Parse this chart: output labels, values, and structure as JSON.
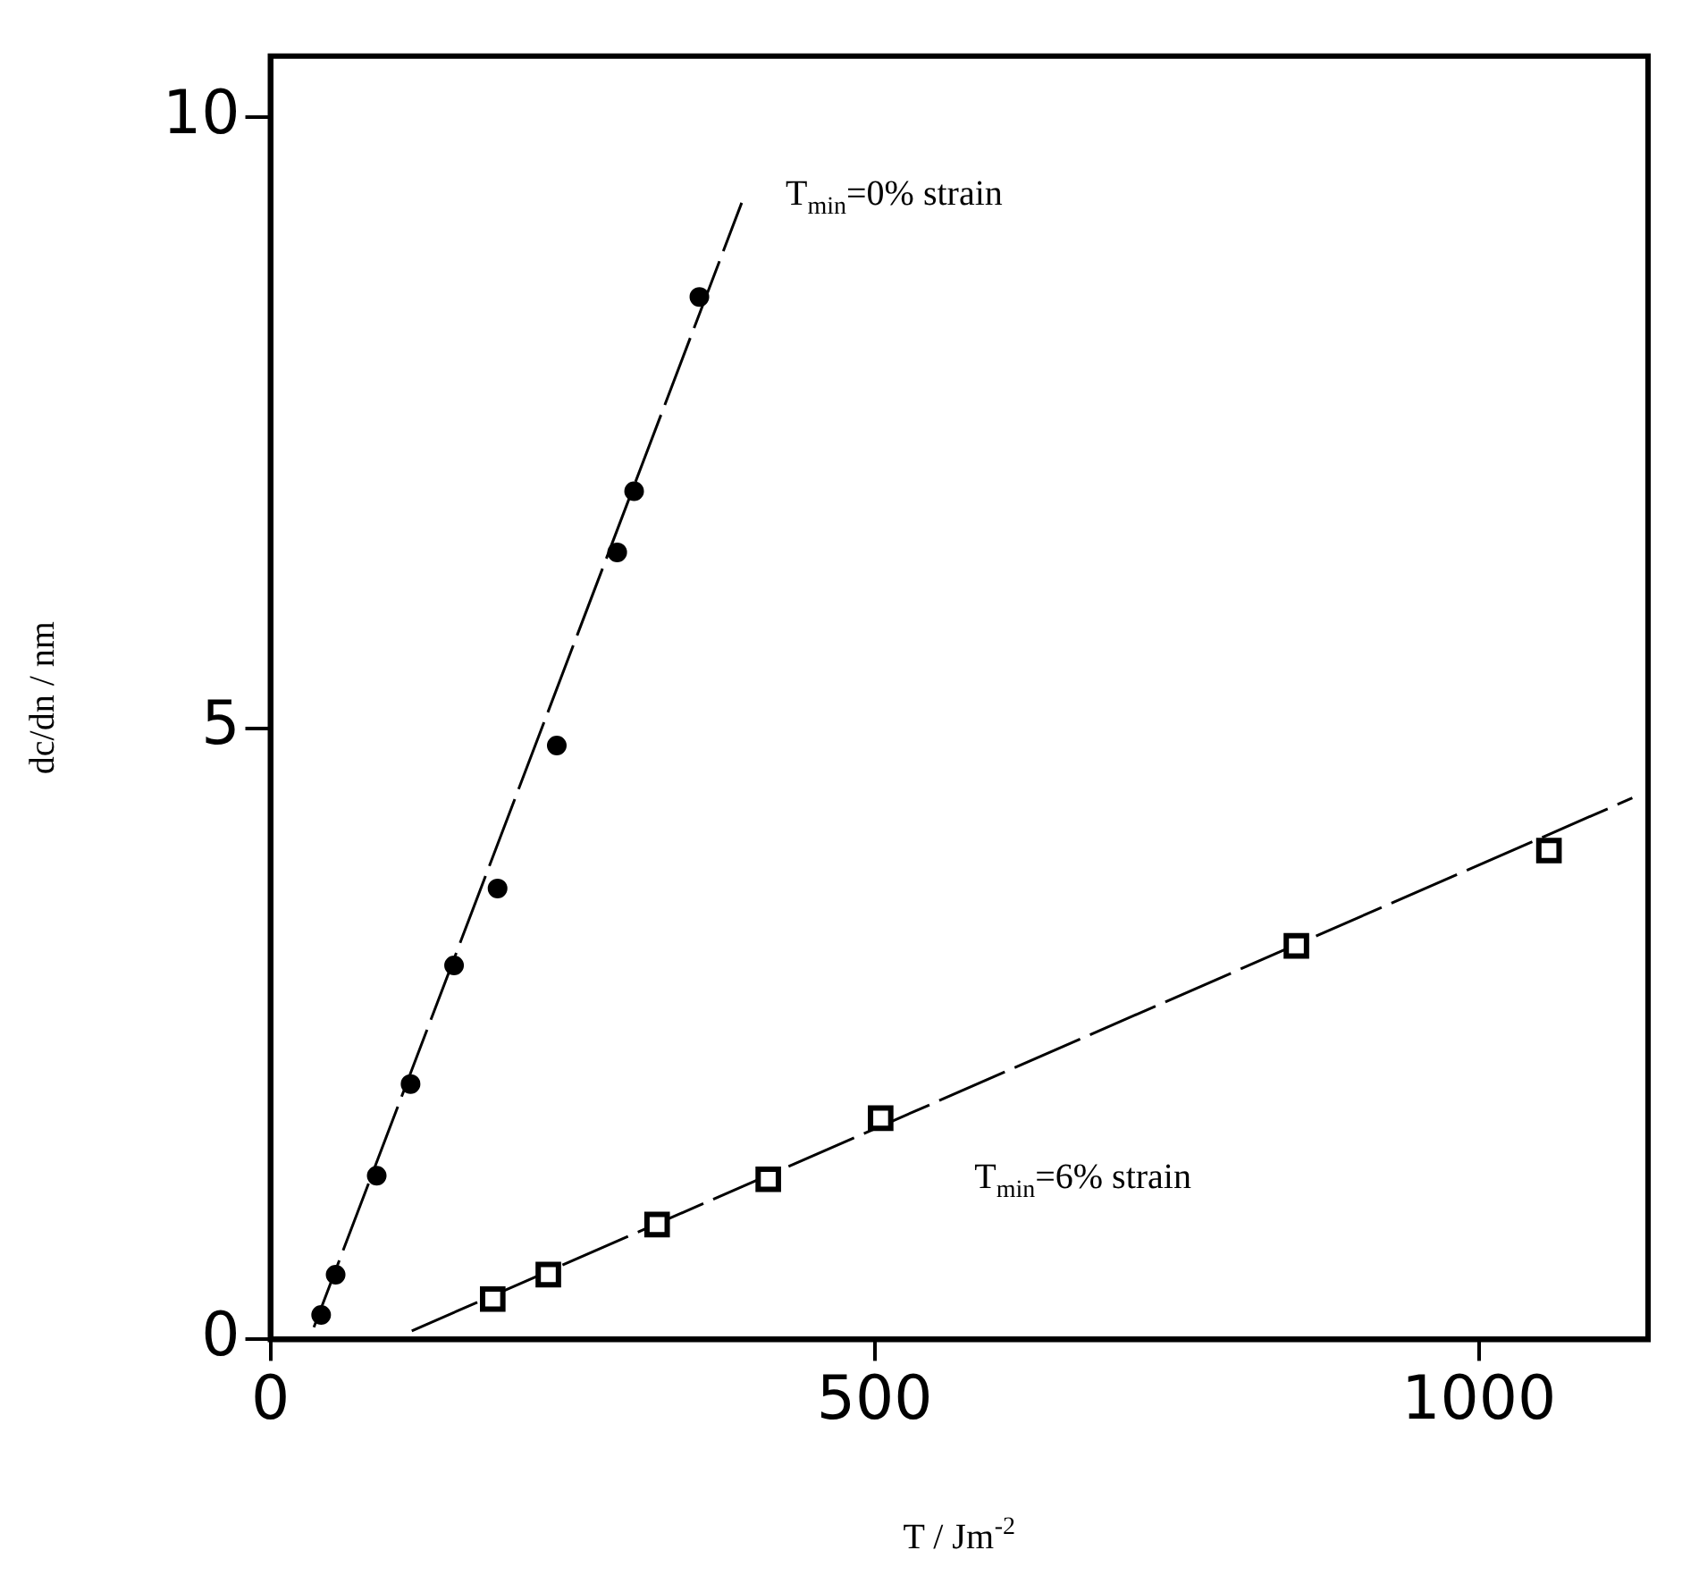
{
  "chart_data": {
    "type": "scatter",
    "xlabel": "T / Jm$^{-2}$",
    "ylabel": "dc/dn / nm",
    "xlim": [
      0,
      1140
    ],
    "ylim": [
      0,
      10.5
    ],
    "xticks": [
      0,
      500,
      1000
    ],
    "yticks": [
      0,
      5,
      10
    ],
    "grid": false,
    "legend": false,
    "series": [
      {
        "marker": "circle",
        "color": "#000000",
        "x": [
          42,
          54,
          88,
          116,
          152,
          188,
          237,
          287,
          301,
          355
        ],
        "values": [
          0.2,
          0.53,
          1.34,
          2.09,
          3.06,
          3.69,
          4.86,
          6.44,
          6.94,
          8.53
        ]
      },
      {
        "marker": "square",
        "color": "#000000",
        "x": [
          184,
          230,
          320,
          412,
          505,
          849,
          1058
        ],
        "values": [
          0.33,
          0.53,
          0.94,
          1.31,
          1.81,
          3.22,
          4.0
        ]
      },
      {
        "type": "line",
        "marker": "none",
        "line_style": "dashed",
        "color": "#000000",
        "x": [
          36,
          390
        ],
        "values": [
          0.1,
          9.3
        ]
      },
      {
        "type": "line",
        "marker": "none",
        "line_style": "dashed",
        "color": "#000000",
        "x": [
          117,
          1127
        ],
        "values": [
          0.07,
          4.43
        ]
      }
    ],
    "annotations": [
      "T$_{min}$=0% strain",
      "T$_{min}$=6% strain"
    ]
  }
}
